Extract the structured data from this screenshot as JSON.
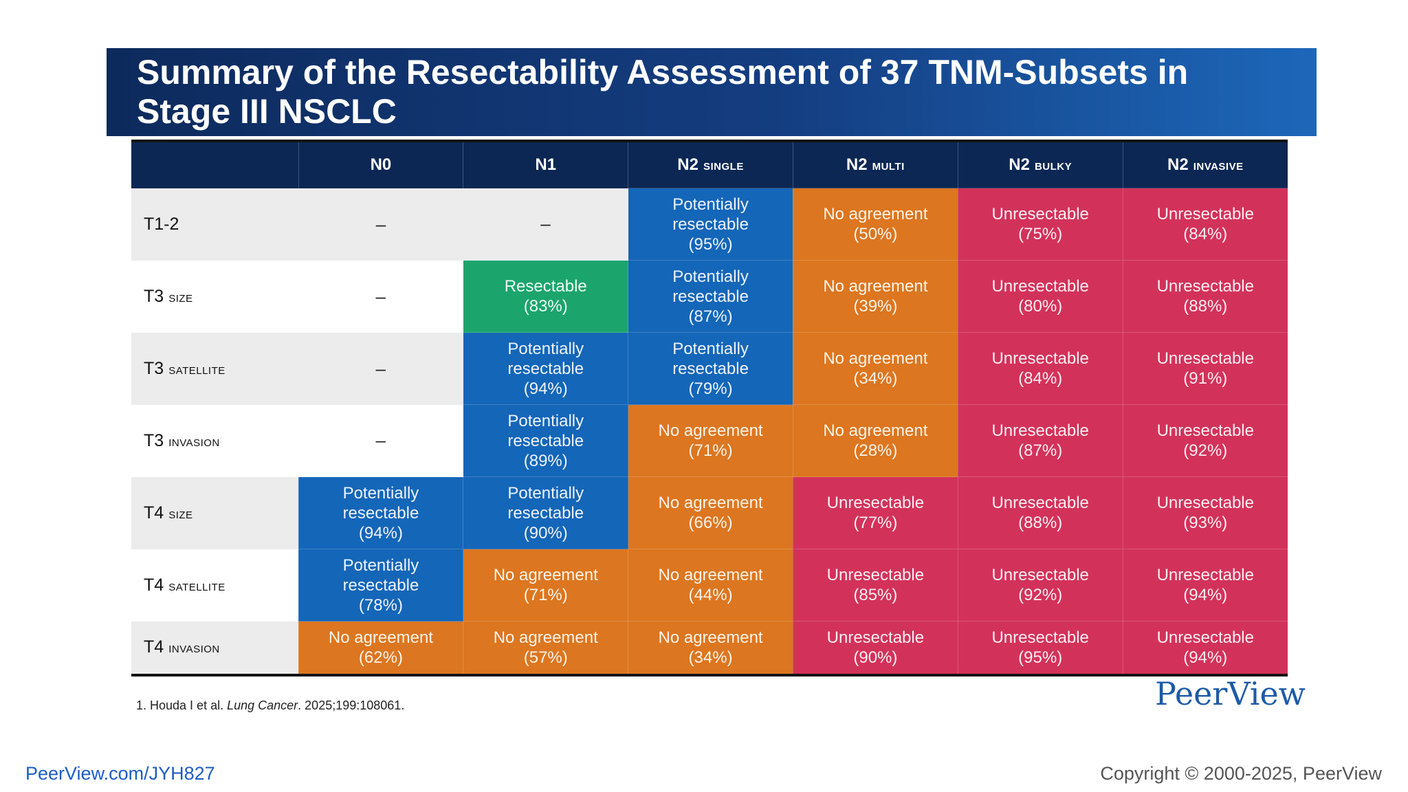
{
  "title": "Summary of the Resectability Assessment of 37 TNM-Subsets in Stage III NSCLC",
  "colors": {
    "title_bg": "#143d80",
    "header_bg": "#0c2753",
    "potentially_resectable": "#1466b8",
    "resectable": "#1ca46d",
    "no_agreement": "#dc7620",
    "unresectable": "#d2325a"
  },
  "columns": [
    {
      "main": "",
      "sub": ""
    },
    {
      "main": "N0",
      "sub": ""
    },
    {
      "main": "N1",
      "sub": ""
    },
    {
      "main": "N2",
      "sub": "SINGLE"
    },
    {
      "main": "N2",
      "sub": "MULTI"
    },
    {
      "main": "N2",
      "sub": "BULKY"
    },
    {
      "main": "N2",
      "sub": "INVASIVE"
    }
  ],
  "rows": [
    {
      "label": "T1-2",
      "sub": "",
      "cells": [
        {
          "l1": "–",
          "l2": "",
          "l3": "",
          "cat": "empty"
        },
        {
          "l1": "–",
          "l2": "",
          "l3": "",
          "cat": "empty"
        },
        {
          "l1": "Potentially",
          "l2": "resectable",
          "l3": "(95%)",
          "cat": "blue"
        },
        {
          "l1": "No agreement",
          "l2": "(50%)",
          "l3": "",
          "cat": "orange"
        },
        {
          "l1": "Unresectable",
          "l2": "(75%)",
          "l3": "",
          "cat": "red"
        },
        {
          "l1": "Unresectable",
          "l2": "(84%)",
          "l3": "",
          "cat": "red"
        }
      ]
    },
    {
      "label": "T3",
      "sub": "SIZE",
      "cells": [
        {
          "l1": "–",
          "l2": "",
          "l3": "",
          "cat": "empty"
        },
        {
          "l1": "Resectable",
          "l2": "(83%)",
          "l3": "",
          "cat": "green"
        },
        {
          "l1": "Potentially",
          "l2": "resectable",
          "l3": "(87%)",
          "cat": "blue"
        },
        {
          "l1": "No agreement",
          "l2": "(39%)",
          "l3": "",
          "cat": "orange"
        },
        {
          "l1": "Unresectable",
          "l2": "(80%)",
          "l3": "",
          "cat": "red"
        },
        {
          "l1": "Unresectable",
          "l2": "(88%)",
          "l3": "",
          "cat": "red"
        }
      ]
    },
    {
      "label": "T3",
      "sub": "SATELLITE",
      "cells": [
        {
          "l1": "–",
          "l2": "",
          "l3": "",
          "cat": "empty"
        },
        {
          "l1": "Potentially",
          "l2": "resectable",
          "l3": "(94%)",
          "cat": "blue"
        },
        {
          "l1": "Potentially",
          "l2": "resectable",
          "l3": "(79%)",
          "cat": "blue"
        },
        {
          "l1": "No agreement",
          "l2": "(34%)",
          "l3": "",
          "cat": "orange"
        },
        {
          "l1": "Unresectable",
          "l2": "(84%)",
          "l3": "",
          "cat": "red"
        },
        {
          "l1": "Unresectable",
          "l2": "(91%)",
          "l3": "",
          "cat": "red"
        }
      ]
    },
    {
      "label": "T3",
      "sub": "INVASION",
      "cells": [
        {
          "l1": "–",
          "l2": "",
          "l3": "",
          "cat": "empty"
        },
        {
          "l1": "Potentially",
          "l2": "resectable",
          "l3": "(89%)",
          "cat": "blue"
        },
        {
          "l1": "No agreement",
          "l2": "(71%)",
          "l3": "",
          "cat": "orange"
        },
        {
          "l1": "No agreement",
          "l2": "(28%)",
          "l3": "",
          "cat": "orange"
        },
        {
          "l1": "Unresectable",
          "l2": "(87%)",
          "l3": "",
          "cat": "red"
        },
        {
          "l1": "Unresectable",
          "l2": "(92%)",
          "l3": "",
          "cat": "red"
        }
      ]
    },
    {
      "label": "T4",
      "sub": "SIZE",
      "cells": [
        {
          "l1": "Potentially",
          "l2": "resectable",
          "l3": "(94%)",
          "cat": "blue"
        },
        {
          "l1": "Potentially",
          "l2": "resectable",
          "l3": "(90%)",
          "cat": "blue"
        },
        {
          "l1": "No agreement",
          "l2": "(66%)",
          "l3": "",
          "cat": "orange"
        },
        {
          "l1": "Unresectable",
          "l2": "(77%)",
          "l3": "",
          "cat": "red"
        },
        {
          "l1": "Unresectable",
          "l2": "(88%)",
          "l3": "",
          "cat": "red"
        },
        {
          "l1": "Unresectable",
          "l2": "(93%)",
          "l3": "",
          "cat": "red"
        }
      ]
    },
    {
      "label": "T4",
      "sub": "SATELLITE",
      "cells": [
        {
          "l1": "Potentially",
          "l2": "resectable",
          "l3": "(78%)",
          "cat": "blue"
        },
        {
          "l1": "No agreement",
          "l2": "(71%)",
          "l3": "",
          "cat": "orange"
        },
        {
          "l1": "No agreement",
          "l2": "(44%)",
          "l3": "",
          "cat": "orange"
        },
        {
          "l1": "Unresectable",
          "l2": "(85%)",
          "l3": "",
          "cat": "red"
        },
        {
          "l1": "Unresectable",
          "l2": "(92%)",
          "l3": "",
          "cat": "red"
        },
        {
          "l1": "Unresectable",
          "l2": "(94%)",
          "l3": "",
          "cat": "red"
        }
      ]
    },
    {
      "label": "T4",
      "sub": "INVASION",
      "cells": [
        {
          "l1": "No agreement",
          "l2": "(62%)",
          "l3": "",
          "cat": "orange"
        },
        {
          "l1": "No agreement",
          "l2": "(57%)",
          "l3": "",
          "cat": "orange"
        },
        {
          "l1": "No agreement",
          "l2": "(34%)",
          "l3": "",
          "cat": "orange"
        },
        {
          "l1": "Unresectable",
          "l2": "(90%)",
          "l3": "",
          "cat": "red"
        },
        {
          "l1": "Unresectable",
          "l2": "(95%)",
          "l3": "",
          "cat": "red"
        },
        {
          "l1": "Unresectable",
          "l2": "(94%)",
          "l3": "",
          "cat": "red"
        }
      ]
    }
  ],
  "reference": {
    "prefix": "1. Houda I et al. ",
    "journal": "Lung Cancer",
    "suffix": ". 2025;199:108061."
  },
  "brand_logo": "PeerView",
  "footer": {
    "url": "PeerView.com/JYH827",
    "copyright": "Copyright © 2000-2025, PeerView"
  }
}
